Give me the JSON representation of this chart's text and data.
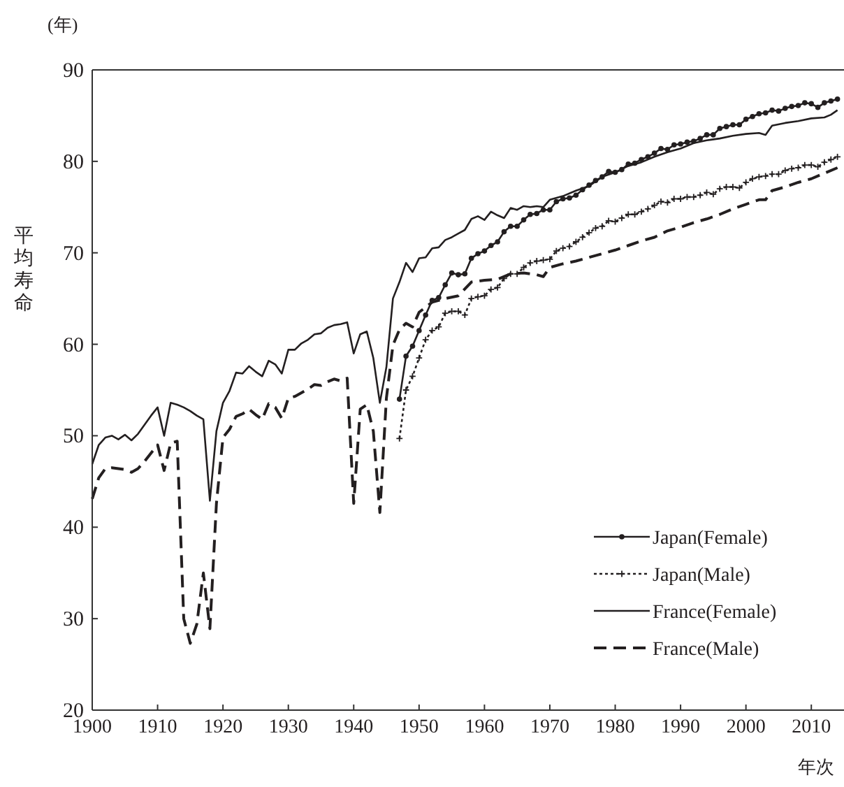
{
  "chart_data": {
    "type": "line",
    "xlabel": "年次",
    "ylabel": "平均寿命",
    "annotations": [
      "(年)"
    ],
    "xlim": [
      1900,
      2015
    ],
    "xticks": [
      1900,
      1910,
      1920,
      1930,
      1940,
      1950,
      1960,
      1970,
      1980,
      1990,
      2000,
      2010
    ],
    "ylim": [
      20,
      90
    ],
    "yticks": [
      20,
      30,
      40,
      50,
      60,
      70,
      80,
      90
    ],
    "grid": false,
    "legend": "bottom right",
    "series": [
      {
        "name": "Japan(Female)",
        "color": "#231f20",
        "line_style": "solid",
        "marker": "circle",
        "x": [
          1947,
          1948,
          1949,
          1950,
          1951,
          1952,
          1953,
          1954,
          1955,
          1956,
          1957,
          1958,
          1959,
          1960,
          1961,
          1962,
          1963,
          1964,
          1965,
          1966,
          1967,
          1968,
          1969,
          1970,
          1971,
          1972,
          1973,
          1974,
          1975,
          1976,
          1977,
          1978,
          1979,
          1980,
          1981,
          1982,
          1983,
          1984,
          1985,
          1986,
          1987,
          1988,
          1989,
          1990,
          1991,
          1992,
          1993,
          1994,
          1995,
          1996,
          1997,
          1998,
          1999,
          2000,
          2001,
          2002,
          2003,
          2004,
          2005,
          2006,
          2007,
          2008,
          2009,
          2010,
          2011,
          2012,
          2013,
          2014
        ],
        "values": [
          54.0,
          58.7,
          59.8,
          61.5,
          63.2,
          64.8,
          65.1,
          66.5,
          67.8,
          67.6,
          67.7,
          69.4,
          69.9,
          70.2,
          70.8,
          71.2,
          72.3,
          72.9,
          72.9,
          73.6,
          74.2,
          74.3,
          74.7,
          74.7,
          75.6,
          75.9,
          76.0,
          76.3,
          76.9,
          77.4,
          77.9,
          78.3,
          78.9,
          78.8,
          79.1,
          79.7,
          79.8,
          80.2,
          80.5,
          80.9,
          81.4,
          81.3,
          81.8,
          81.9,
          82.1,
          82.2,
          82.5,
          82.9,
          82.9,
          83.6,
          83.8,
          84.0,
          84.0,
          84.6,
          84.9,
          85.2,
          85.3,
          85.6,
          85.5,
          85.8,
          86.0,
          86.1,
          86.4,
          86.3,
          85.9,
          86.4,
          86.6,
          86.8
        ]
      },
      {
        "name": "Japan(Male)",
        "color": "#231f20",
        "line_style": "dotted",
        "marker": "cross",
        "x": [
          1947,
          1948,
          1949,
          1950,
          1951,
          1952,
          1953,
          1954,
          1955,
          1956,
          1957,
          1958,
          1959,
          1960,
          1961,
          1962,
          1963,
          1964,
          1965,
          1966,
          1967,
          1968,
          1969,
          1970,
          1971,
          1972,
          1973,
          1974,
          1975,
          1976,
          1977,
          1978,
          1979,
          1980,
          1981,
          1982,
          1983,
          1984,
          1985,
          1986,
          1987,
          1988,
          1989,
          1990,
          1991,
          1992,
          1993,
          1994,
          1995,
          1996,
          1997,
          1998,
          1999,
          2000,
          2001,
          2002,
          2003,
          2004,
          2005,
          2006,
          2007,
          2008,
          2009,
          2010,
          2011,
          2012,
          2013,
          2014
        ],
        "values": [
          49.7,
          55.0,
          56.5,
          58.5,
          60.5,
          61.5,
          61.9,
          63.4,
          63.6,
          63.6,
          63.2,
          65.0,
          65.2,
          65.3,
          66.0,
          66.2,
          67.2,
          67.7,
          67.7,
          68.4,
          68.9,
          69.1,
          69.2,
          69.3,
          70.2,
          70.5,
          70.7,
          71.2,
          71.7,
          72.2,
          72.7,
          72.9,
          73.5,
          73.4,
          73.8,
          74.2,
          74.2,
          74.5,
          74.8,
          75.2,
          75.6,
          75.5,
          75.9,
          75.9,
          76.1,
          76.1,
          76.3,
          76.6,
          76.4,
          77.0,
          77.2,
          77.2,
          77.1,
          77.7,
          78.1,
          78.3,
          78.4,
          78.6,
          78.6,
          79.0,
          79.2,
          79.3,
          79.6,
          79.6,
          79.4,
          79.9,
          80.2,
          80.5
        ]
      },
      {
        "name": "France(Female)",
        "color": "#231f20",
        "line_style": "solid",
        "marker": "none",
        "x": [
          1900,
          1901,
          1902,
          1903,
          1904,
          1905,
          1906,
          1907,
          1908,
          1909,
          1910,
          1911,
          1912,
          1913,
          1914,
          1915,
          1916,
          1917,
          1918,
          1919,
          1920,
          1921,
          1922,
          1923,
          1924,
          1925,
          1926,
          1927,
          1928,
          1929,
          1930,
          1931,
          1932,
          1933,
          1934,
          1935,
          1936,
          1937,
          1938,
          1939,
          1940,
          1941,
          1942,
          1943,
          1944,
          1945,
          1946,
          1947,
          1948,
          1949,
          1950,
          1951,
          1952,
          1953,
          1954,
          1955,
          1956,
          1957,
          1958,
          1959,
          1960,
          1961,
          1962,
          1963,
          1964,
          1965,
          1966,
          1967,
          1968,
          1969,
          1970,
          1972,
          1974,
          1976,
          1978,
          1980,
          1982,
          1984,
          1986,
          1988,
          1990,
          1992,
          1994,
          1996,
          1998,
          2000,
          2002,
          2003,
          2004,
          2006,
          2008,
          2010,
          2012,
          2013,
          2014
        ],
        "values": [
          46.9,
          49.0,
          49.8,
          50.0,
          49.6,
          50.1,
          49.5,
          50.2,
          51.2,
          52.2,
          53.1,
          50.0,
          53.6,
          53.4,
          53.1,
          52.7,
          52.2,
          51.8,
          42.9,
          50.5,
          53.6,
          54.9,
          56.9,
          56.8,
          57.6,
          57.0,
          56.5,
          58.2,
          57.8,
          56.8,
          59.4,
          59.4,
          60.1,
          60.5,
          61.1,
          61.2,
          61.8,
          62.1,
          62.2,
          62.4,
          59.0,
          61.1,
          61.4,
          58.5,
          53.6,
          57.5,
          65.0,
          66.8,
          68.9,
          67.9,
          69.4,
          69.5,
          70.5,
          70.6,
          71.4,
          71.7,
          72.1,
          72.5,
          73.7,
          74.0,
          73.6,
          74.5,
          74.1,
          73.8,
          74.9,
          74.7,
          75.1,
          75.0,
          75.1,
          75.0,
          75.8,
          76.2,
          76.8,
          77.3,
          78.3,
          78.8,
          79.5,
          79.9,
          80.5,
          81.0,
          81.4,
          82.0,
          82.3,
          82.5,
          82.8,
          83.0,
          83.1,
          82.9,
          83.9,
          84.2,
          84.4,
          84.7,
          84.8,
          85.1,
          85.6
        ]
      },
      {
        "name": "France(Male)",
        "color": "#231f20",
        "line_style": "dashed",
        "marker": "none",
        "x": [
          1900,
          1901,
          1902,
          1903,
          1904,
          1905,
          1906,
          1907,
          1908,
          1909,
          1910,
          1911,
          1912,
          1913,
          1914,
          1915,
          1916,
          1917,
          1918,
          1919,
          1920,
          1921,
          1922,
          1923,
          1924,
          1925,
          1926,
          1927,
          1928,
          1929,
          1930,
          1931,
          1932,
          1933,
          1934,
          1935,
          1936,
          1937,
          1938,
          1939,
          1940,
          1941,
          1942,
          1943,
          1944,
          1945,
          1946,
          1947,
          1948,
          1949,
          1950,
          1952,
          1954,
          1956,
          1958,
          1960,
          1962,
          1964,
          1966,
          1968,
          1969,
          1970,
          1972,
          1974,
          1976,
          1978,
          1980,
          1982,
          1984,
          1986,
          1988,
          1990,
          1992,
          1994,
          1996,
          1998,
          2000,
          2002,
          2003,
          2004,
          2006,
          2008,
          2010,
          2012,
          2014
        ],
        "values": [
          43.1,
          45.4,
          46.4,
          46.5,
          46.4,
          46.3,
          46.0,
          46.4,
          47.2,
          48.1,
          49.0,
          46.2,
          49.2,
          49.4,
          30.0,
          27.3,
          29.4,
          35.0,
          28.9,
          42.6,
          49.8,
          50.7,
          52.1,
          52.4,
          52.9,
          52.3,
          51.8,
          53.5,
          53.1,
          51.9,
          54.1,
          54.3,
          54.7,
          55.1,
          55.6,
          55.5,
          55.9,
          56.2,
          56.0,
          56.3,
          42.6,
          52.9,
          53.4,
          50.5,
          41.6,
          54.1,
          59.9,
          61.6,
          62.3,
          61.9,
          63.5,
          64.6,
          65.0,
          65.3,
          66.8,
          67.0,
          67.1,
          67.7,
          67.8,
          67.6,
          67.4,
          68.4,
          68.8,
          69.1,
          69.5,
          69.9,
          70.3,
          70.8,
          71.3,
          71.7,
          72.4,
          72.8,
          73.3,
          73.7,
          74.2,
          74.8,
          75.3,
          75.8,
          75.8,
          76.8,
          77.2,
          77.7,
          78.1,
          78.7,
          79.3
        ]
      }
    ]
  }
}
